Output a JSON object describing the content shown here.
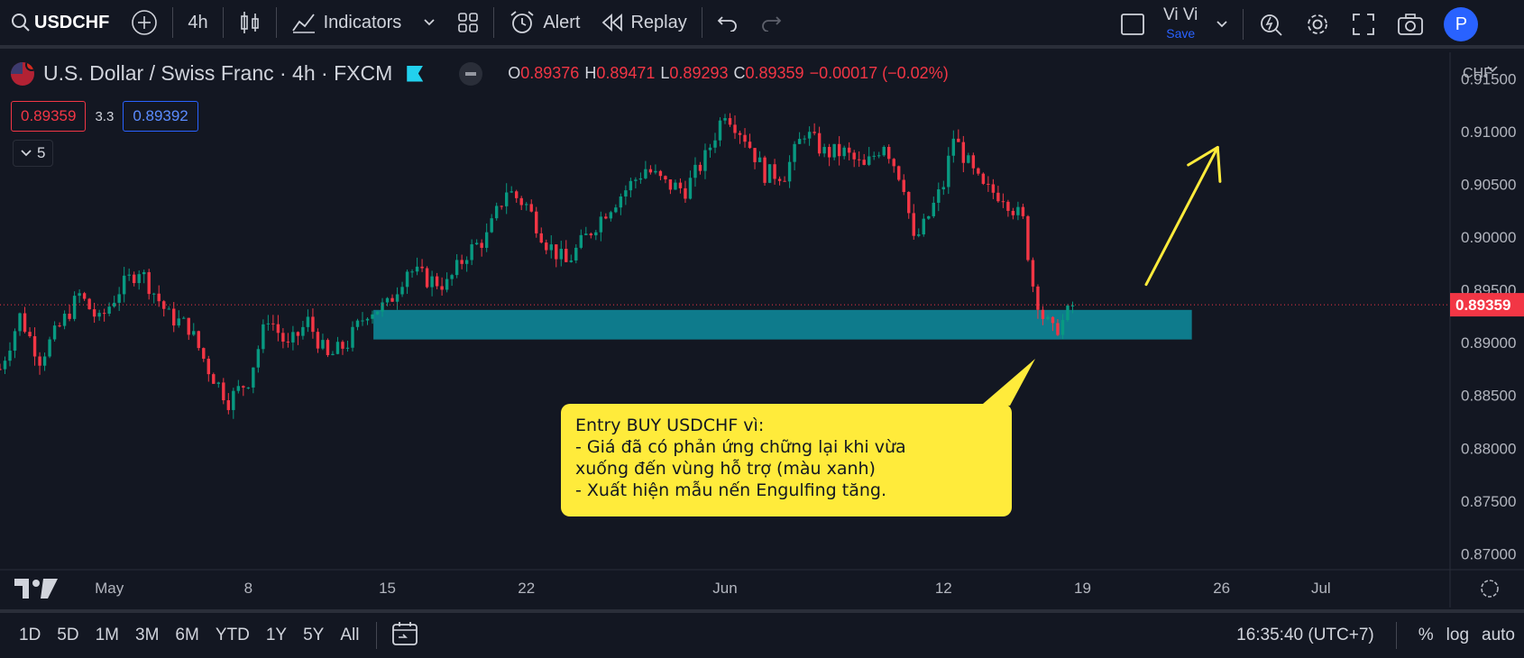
{
  "toolbar": {
    "symbol": "USDCHF",
    "interval": "4h",
    "indicators_label": "Indicators",
    "alert_label": "Alert",
    "replay_label": "Replay",
    "layout_name": "Vi Vi",
    "layout_save": "Save",
    "avatar_letter": "P"
  },
  "legend": {
    "title": "U.S. Dollar / Swiss Franc · 4h · FXCM",
    "o_label": "O",
    "o_value": "0.89376",
    "h_label": "H",
    "h_value": "0.89471",
    "l_label": "L",
    "l_value": "0.89293",
    "c_label": "C",
    "c_value": "0.89359",
    "change": "−0.00017 (−0.02%)",
    "sell_price": "0.89359",
    "spread": "3.3",
    "buy_price": "0.89392",
    "indicator_count": "5"
  },
  "price_scale": {
    "currency": "CHF",
    "current_price_label": "0.89359"
  },
  "callout": {
    "line1": "Entry BUY USDCHF vì:",
    "line2": "- Giá đã có phản ứng chững lại khi vừa",
    "line3": "xuống đến vùng hỗ trợ (màu xanh)",
    "line4": "- Xuất hiện mẫu nến Engulfing tăng."
  },
  "bottombar": {
    "ranges": [
      "1D",
      "5D",
      "1M",
      "3M",
      "6M",
      "YTD",
      "1Y",
      "5Y",
      "All"
    ],
    "clock": "16:35:40 (UTC+7)",
    "percent_label": "%",
    "log_label": "log",
    "auto_label": "auto"
  },
  "colors": {
    "up": "#089981",
    "down": "#f23645",
    "zone": "#0e7b8c",
    "arrow": "#ffeb3b",
    "current_price": "#f23645"
  },
  "chart_data": {
    "type": "candlestick",
    "symbol": "USDCHF",
    "interval": "4h",
    "ylim": [
      0.8685,
      0.9175
    ],
    "y_ticks": [
      "0.91500",
      "0.91000",
      "0.90500",
      "0.90000",
      "0.89500",
      "0.89000",
      "0.88500",
      "0.88000",
      "0.87500",
      "0.87000"
    ],
    "y_tick_values": [
      0.915,
      0.91,
      0.905,
      0.9,
      0.895,
      0.89,
      0.885,
      0.88,
      0.875,
      0.87
    ],
    "x_ticks": [
      "May",
      "8",
      "15",
      "22",
      "Jun",
      "12",
      "19",
      "26",
      "Jul"
    ],
    "x_tick_days": [
      0,
      7,
      14,
      21,
      31,
      42,
      49,
      56,
      61
    ],
    "x_range_days": [
      -5.5,
      67.5
    ],
    "current_price": 0.89359,
    "support_zone": {
      "low": 0.8903,
      "high": 0.8931,
      "start_day": 13.3,
      "end_day": 54.5
    },
    "arrow": {
      "from_day": 52.2,
      "from_price": 0.8955,
      "to_day": 55.8,
      "to_price": 0.9085
    },
    "path": [
      [
        -5.5,
        0.8875
      ],
      [
        -4.5,
        0.8925
      ],
      [
        -3.5,
        0.8885
      ],
      [
        -2.5,
        0.8915
      ],
      [
        -1.5,
        0.8945
      ],
      [
        -0.5,
        0.892
      ],
      [
        0.5,
        0.895
      ],
      [
        1.5,
        0.897
      ],
      [
        2.5,
        0.894
      ],
      [
        3.0,
        0.8925
      ],
      [
        4.0,
        0.8915
      ],
      [
        5.0,
        0.8875
      ],
      [
        6.0,
        0.8845
      ],
      [
        7.0,
        0.8865
      ],
      [
        8.0,
        0.8925
      ],
      [
        9.0,
        0.8895
      ],
      [
        10.0,
        0.892
      ],
      [
        11.0,
        0.8885
      ],
      [
        12.0,
        0.89
      ],
      [
        13.0,
        0.893
      ],
      [
        14.0,
        0.8935
      ],
      [
        15.0,
        0.897
      ],
      [
        16.0,
        0.896
      ],
      [
        17.0,
        0.8955
      ],
      [
        18.0,
        0.8985
      ],
      [
        19.0,
        0.9
      ],
      [
        20.0,
        0.9045
      ],
      [
        21.0,
        0.903
      ],
      [
        22.0,
        0.8995
      ],
      [
        23.0,
        0.8975
      ],
      [
        24.0,
        0.9
      ],
      [
        25.0,
        0.9025
      ],
      [
        26.0,
        0.9045
      ],
      [
        27.0,
        0.9065
      ],
      [
        28.0,
        0.905
      ],
      [
        29.0,
        0.9045
      ],
      [
        30.0,
        0.9075
      ],
      [
        31.0,
        0.912
      ],
      [
        32.0,
        0.9095
      ],
      [
        33.0,
        0.906
      ],
      [
        34.0,
        0.906
      ],
      [
        35.0,
        0.91
      ],
      [
        36.0,
        0.908
      ],
      [
        37.0,
        0.908
      ],
      [
        38.0,
        0.9065
      ],
      [
        39.0,
        0.909
      ],
      [
        40.0,
        0.905
      ],
      [
        40.5,
        0.8995
      ],
      [
        41.0,
        0.901
      ],
      [
        42.0,
        0.905
      ],
      [
        42.5,
        0.9095
      ],
      [
        43.5,
        0.906
      ],
      [
        44.0,
        0.9045
      ],
      [
        45.0,
        0.904
      ],
      [
        46.0,
        0.9015
      ],
      [
        46.5,
        0.8955
      ],
      [
        47.0,
        0.8925
      ],
      [
        47.5,
        0.891
      ],
      [
        48.0,
        0.892
      ],
      [
        48.5,
        0.8935
      ]
    ],
    "note": "Volatility shown: intrabar high/low spread roughly 0.0010–0.0025 per candle"
  }
}
